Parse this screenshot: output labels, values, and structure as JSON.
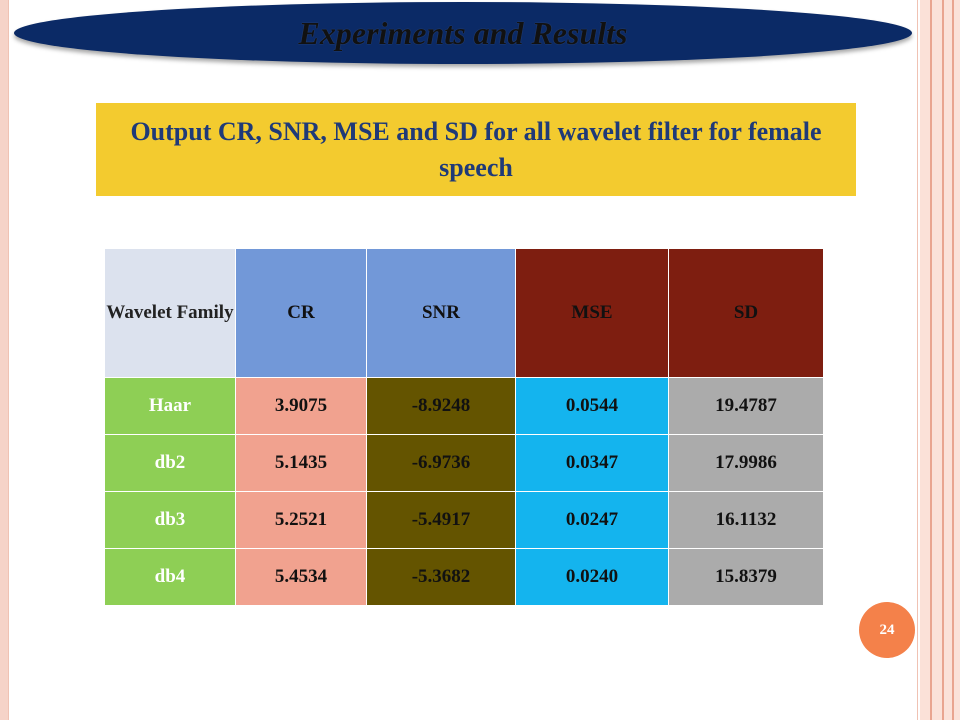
{
  "slide": {
    "title": "Experiments and Results",
    "subtitle": "Output CR, SNR, MSE and SD for all wavelet filter for female speech",
    "page_number": "24"
  },
  "table": {
    "headers": [
      "Wavelet Family",
      "CR",
      "SNR",
      "MSE",
      "SD"
    ],
    "rows": [
      [
        "Haar",
        "3.9075",
        "-8.9248",
        "0.0544",
        "19.4787"
      ],
      [
        "db2",
        "5.1435",
        "-6.9736",
        "0.0347",
        "17.9986"
      ],
      [
        "db3",
        "5.2521",
        "-5.4917",
        "0.0247",
        "16.1132"
      ],
      [
        "db4",
        "5.4534",
        "-5.3682",
        "0.0240",
        "15.8379"
      ]
    ]
  },
  "colors": {
    "title_banner": "#0b2a66",
    "subtitle_box": "#f3cb2f",
    "subtitle_text": "#1f3a78",
    "family_header": "#dce2ee",
    "cr_snr_header": "#7298d8",
    "mse_sd_header": "#7e1e10",
    "family_cells": "#8ecf55",
    "cr_cells": "#f1a28f",
    "snr_cells": "#645400",
    "mse_cells": "#14b4ee",
    "sd_cells": "#ababab",
    "page_badge": "#f4814a"
  }
}
